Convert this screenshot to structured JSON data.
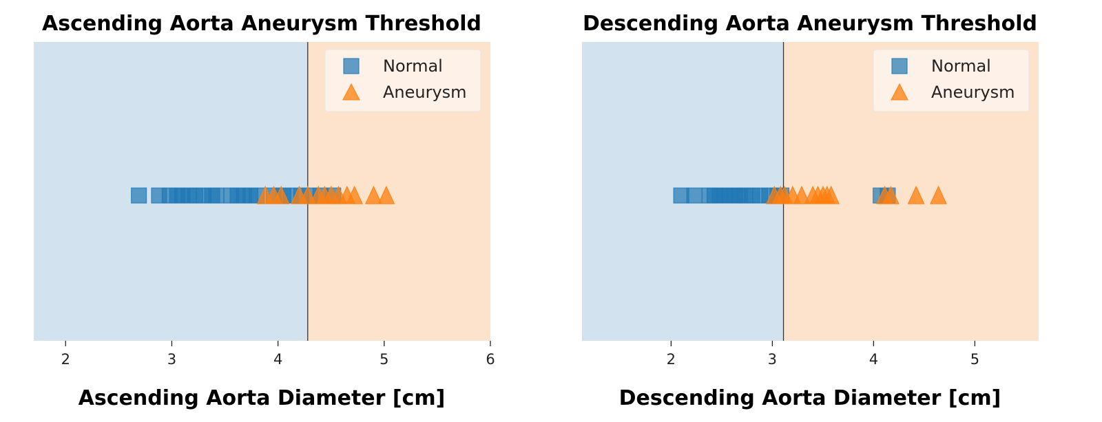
{
  "chart_data": [
    {
      "type": "scatter",
      "title": "Ascending Aorta Aneurysm Threshold",
      "xlabel": "Ascending Aorta Diameter [cm]",
      "xlim": [
        1.7,
        6.0
      ],
      "xticks": [
        "2",
        "3",
        "4",
        "5",
        "6"
      ],
      "threshold": 4.28,
      "legend_position": "upper-right",
      "region_colors": {
        "normal": "#d2e2ef",
        "aneurysm": "#fde3cc"
      },
      "series": [
        {
          "name": "Normal",
          "marker": "square",
          "color": "#1f77b4",
          "x": [
            2.69,
            2.88,
            2.98,
            3.05,
            3.1,
            3.16,
            3.22,
            3.3,
            3.38,
            3.42,
            3.56,
            3.62,
            3.68,
            3.74,
            3.8,
            3.96,
            4.05,
            4.12,
            4.22,
            4.3,
            4.4,
            4.52
          ]
        },
        {
          "name": "Aneurysm",
          "marker": "triangle",
          "color": "#ff7f0e",
          "x": [
            3.88,
            3.96,
            4.03,
            4.2,
            4.28,
            4.38,
            4.44,
            4.5,
            4.57,
            4.65,
            4.72,
            4.9,
            5.02
          ]
        }
      ]
    },
    {
      "type": "scatter",
      "title": "Descending Aorta Aneurysm Threshold",
      "xlabel": "Descending Aorta Diameter [cm]",
      "xlim": [
        1.12,
        5.63
      ],
      "xticks": [
        "2",
        "3",
        "4",
        "5"
      ],
      "threshold": 3.11,
      "legend_position": "upper-right",
      "region_colors": {
        "normal": "#d2e2ef",
        "aneurysm": "#fde3cc"
      },
      "series": [
        {
          "name": "Normal",
          "marker": "square",
          "color": "#1f77b4",
          "x": [
            2.1,
            2.23,
            2.38,
            2.43,
            2.48,
            2.53,
            2.58,
            2.63,
            2.68,
            2.73,
            2.8,
            2.88,
            2.97,
            3.05,
            3.09,
            4.07,
            4.14
          ]
        },
        {
          "name": "Aneurysm",
          "marker": "triangle",
          "color": "#ff7f0e",
          "x": [
            3.02,
            3.08,
            3.12,
            3.2,
            3.29,
            3.4,
            3.45,
            3.5,
            3.54,
            3.58,
            4.11,
            4.17,
            4.42,
            4.64
          ]
        }
      ]
    }
  ]
}
